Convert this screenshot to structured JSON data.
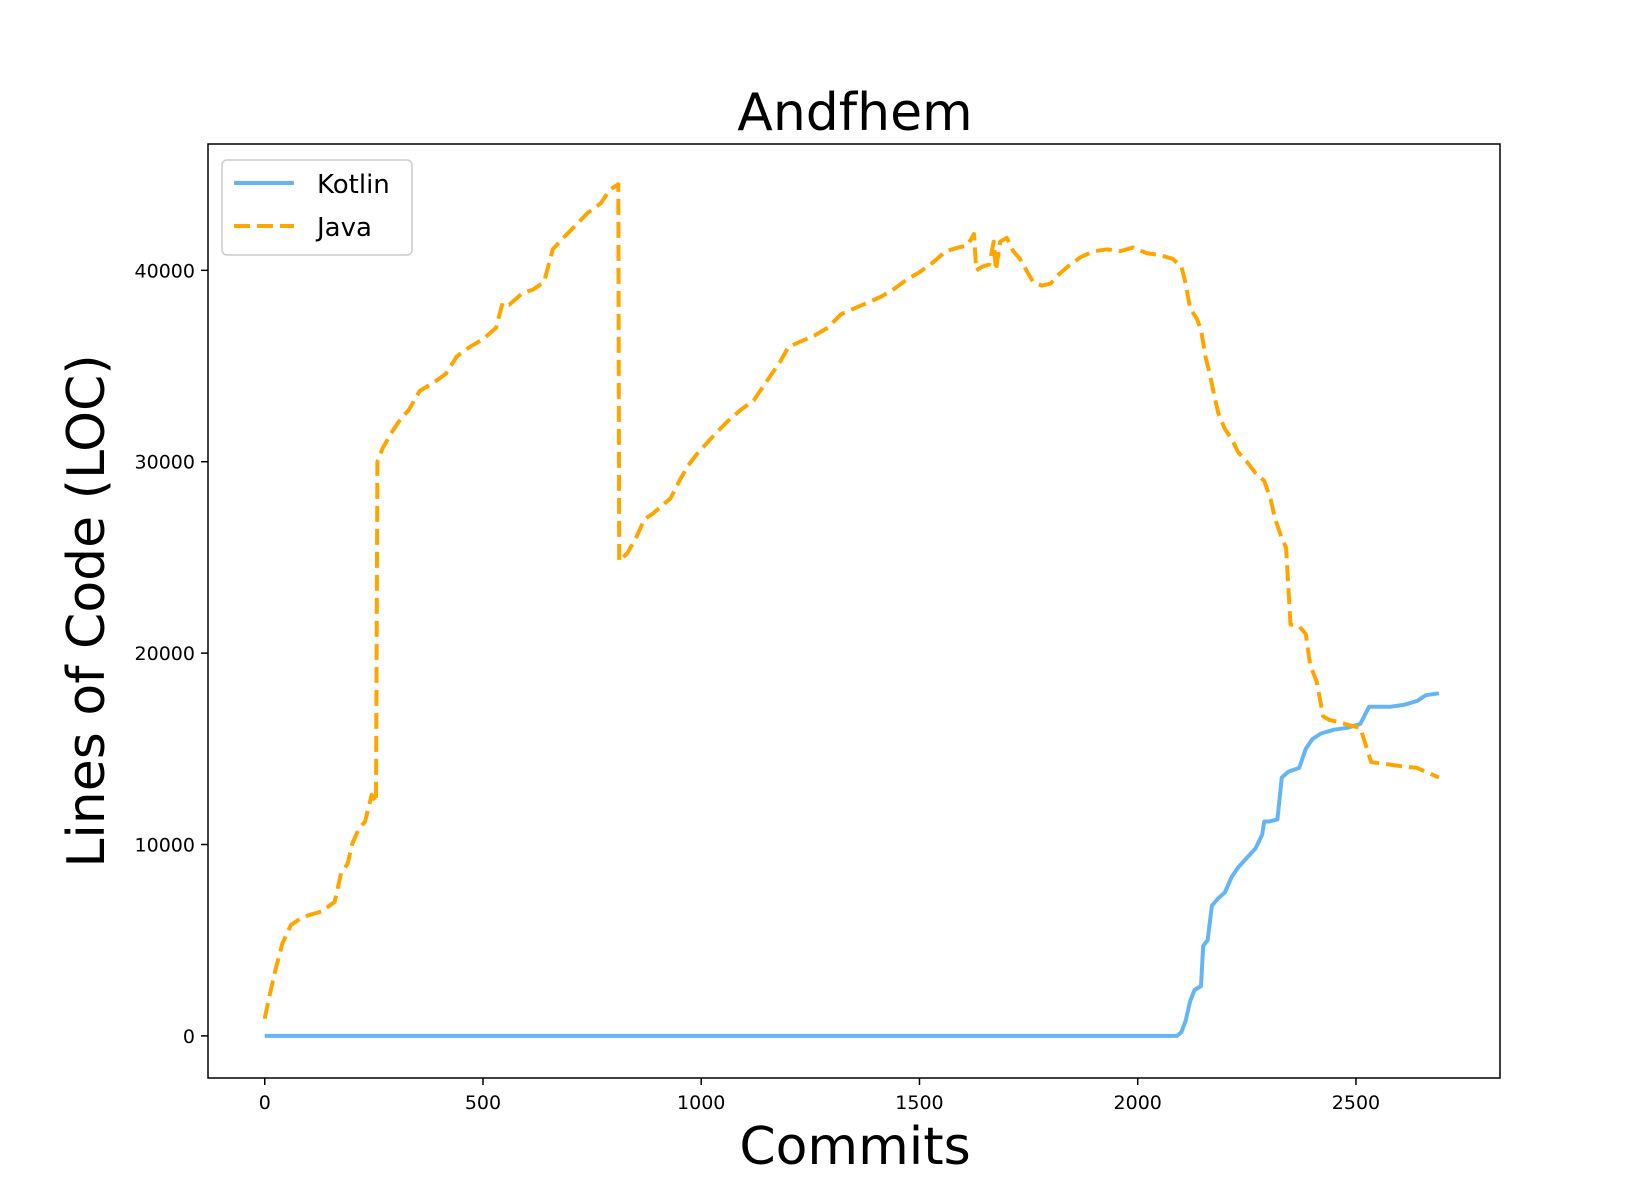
{
  "chart_data": {
    "type": "line",
    "title": "Andfhem",
    "xlabel": "Commits",
    "ylabel": "Lines of Code (LOC)",
    "xlim": [
      -130,
      2830
    ],
    "ylim": [
      -2200,
      46600
    ],
    "xticks": [
      0,
      500,
      1000,
      1500,
      2000,
      2500
    ],
    "yticks": [
      0,
      10000,
      20000,
      30000,
      40000
    ],
    "xtick_labels": [
      "0",
      "500",
      "1000",
      "1500",
      "2000",
      "2500"
    ],
    "ytick_labels": [
      "0",
      "10000",
      "20000",
      "30000",
      "40000"
    ],
    "grid": false,
    "legend_position": "top-left",
    "series": [
      {
        "name": "Kotlin",
        "color": "#64b5f6",
        "style": "solid",
        "points": [
          [
            0,
            0
          ],
          [
            500,
            0
          ],
          [
            1000,
            0
          ],
          [
            1500,
            0
          ],
          [
            2000,
            0
          ],
          [
            2090,
            0
          ],
          [
            2100,
            200
          ],
          [
            2110,
            800
          ],
          [
            2120,
            1800
          ],
          [
            2130,
            2400
          ],
          [
            2145,
            2600
          ],
          [
            2150,
            4700
          ],
          [
            2160,
            5000
          ],
          [
            2170,
            6800
          ],
          [
            2185,
            7200
          ],
          [
            2200,
            7500
          ],
          [
            2215,
            8300
          ],
          [
            2230,
            8800
          ],
          [
            2250,
            9300
          ],
          [
            2270,
            9800
          ],
          [
            2285,
            10500
          ],
          [
            2290,
            11200
          ],
          [
            2300,
            11200
          ],
          [
            2320,
            11300
          ],
          [
            2330,
            13500
          ],
          [
            2345,
            13800
          ],
          [
            2370,
            14000
          ],
          [
            2385,
            15000
          ],
          [
            2400,
            15500
          ],
          [
            2420,
            15800
          ],
          [
            2450,
            16000
          ],
          [
            2480,
            16100
          ],
          [
            2510,
            16300
          ],
          [
            2530,
            17200
          ],
          [
            2580,
            17200
          ],
          [
            2610,
            17300
          ],
          [
            2640,
            17500
          ],
          [
            2660,
            17800
          ],
          [
            2690,
            17900
          ]
        ]
      },
      {
        "name": "Java",
        "color": "#ffa500",
        "style": "dashed",
        "points": [
          [
            0,
            900
          ],
          [
            10,
            2000
          ],
          [
            25,
            3500
          ],
          [
            40,
            4800
          ],
          [
            60,
            5800
          ],
          [
            80,
            6100
          ],
          [
            100,
            6300
          ],
          [
            130,
            6500
          ],
          [
            160,
            7000
          ],
          [
            175,
            8500
          ],
          [
            190,
            9000
          ],
          [
            200,
            10000
          ],
          [
            215,
            10800
          ],
          [
            230,
            11200
          ],
          [
            245,
            12600
          ],
          [
            255,
            12200
          ],
          [
            258,
            30000
          ],
          [
            270,
            30700
          ],
          [
            290,
            31500
          ],
          [
            310,
            32200
          ],
          [
            330,
            32700
          ],
          [
            355,
            33700
          ],
          [
            385,
            34100
          ],
          [
            415,
            34600
          ],
          [
            440,
            35500
          ],
          [
            470,
            36000
          ],
          [
            500,
            36400
          ],
          [
            530,
            37000
          ],
          [
            545,
            38300
          ],
          [
            560,
            38200
          ],
          [
            590,
            38800
          ],
          [
            615,
            39000
          ],
          [
            640,
            39400
          ],
          [
            660,
            41100
          ],
          [
            680,
            41600
          ],
          [
            710,
            42300
          ],
          [
            740,
            43000
          ],
          [
            770,
            43500
          ],
          [
            790,
            44200
          ],
          [
            810,
            44500
          ],
          [
            812,
            24800
          ],
          [
            830,
            25200
          ],
          [
            850,
            26000
          ],
          [
            870,
            27000
          ],
          [
            890,
            27300
          ],
          [
            910,
            27700
          ],
          [
            930,
            28100
          ],
          [
            950,
            29000
          ],
          [
            970,
            29800
          ],
          [
            990,
            30400
          ],
          [
            1010,
            30900
          ],
          [
            1030,
            31400
          ],
          [
            1060,
            32100
          ],
          [
            1090,
            32700
          ],
          [
            1120,
            33200
          ],
          [
            1150,
            34200
          ],
          [
            1180,
            35200
          ],
          [
            1200,
            36000
          ],
          [
            1230,
            36300
          ],
          [
            1260,
            36600
          ],
          [
            1290,
            37000
          ],
          [
            1320,
            37700
          ],
          [
            1350,
            38000
          ],
          [
            1380,
            38300
          ],
          [
            1410,
            38600
          ],
          [
            1440,
            39000
          ],
          [
            1470,
            39500
          ],
          [
            1500,
            39900
          ],
          [
            1530,
            40400
          ],
          [
            1560,
            41000
          ],
          [
            1590,
            41200
          ],
          [
            1610,
            41300
          ],
          [
            1625,
            41900
          ],
          [
            1630,
            40000
          ],
          [
            1645,
            40200
          ],
          [
            1660,
            40300
          ],
          [
            1670,
            41500
          ],
          [
            1675,
            40000
          ],
          [
            1685,
            41500
          ],
          [
            1700,
            41700
          ],
          [
            1715,
            41000
          ],
          [
            1730,
            40600
          ],
          [
            1745,
            40000
          ],
          [
            1760,
            39400
          ],
          [
            1780,
            39200
          ],
          [
            1800,
            39300
          ],
          [
            1820,
            39800
          ],
          [
            1840,
            40200
          ],
          [
            1870,
            40700
          ],
          [
            1900,
            41000
          ],
          [
            1930,
            41100
          ],
          [
            1960,
            41000
          ],
          [
            1990,
            41200
          ],
          [
            2020,
            40900
          ],
          [
            2050,
            40800
          ],
          [
            2080,
            40600
          ],
          [
            2100,
            40200
          ],
          [
            2110,
            39300
          ],
          [
            2120,
            38000
          ],
          [
            2135,
            37500
          ],
          [
            2145,
            36900
          ],
          [
            2155,
            35500
          ],
          [
            2165,
            34600
          ],
          [
            2175,
            33500
          ],
          [
            2185,
            32500
          ],
          [
            2200,
            31700
          ],
          [
            2215,
            31200
          ],
          [
            2230,
            30500
          ],
          [
            2250,
            30000
          ],
          [
            2270,
            29400
          ],
          [
            2290,
            29000
          ],
          [
            2305,
            28000
          ],
          [
            2315,
            27000
          ],
          [
            2330,
            26000
          ],
          [
            2340,
            25500
          ],
          [
            2350,
            21500
          ],
          [
            2370,
            21400
          ],
          [
            2385,
            21000
          ],
          [
            2395,
            19400
          ],
          [
            2410,
            18500
          ],
          [
            2425,
            16700
          ],
          [
            2440,
            16500
          ],
          [
            2460,
            16400
          ],
          [
            2490,
            16200
          ],
          [
            2510,
            16100
          ],
          [
            2525,
            15000
          ],
          [
            2535,
            14300
          ],
          [
            2570,
            14200
          ],
          [
            2600,
            14100
          ],
          [
            2640,
            14000
          ],
          [
            2660,
            13800
          ],
          [
            2690,
            13500
          ]
        ]
      }
    ]
  }
}
